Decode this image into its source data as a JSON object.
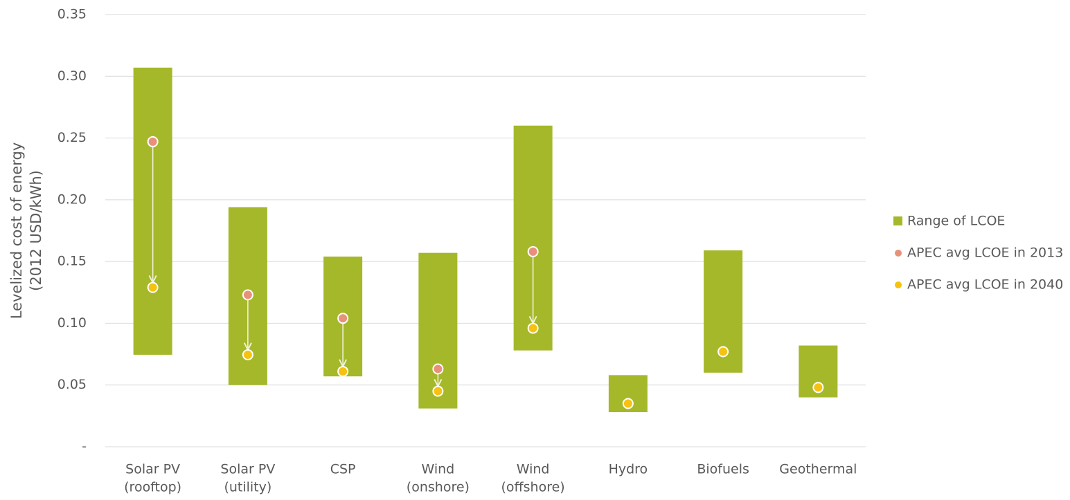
{
  "chart_data": {
    "type": "range-dot",
    "ylabel": [
      "Levelized cost of energy",
      "(2012 USD/kWh)"
    ],
    "categories": [
      [
        "Solar PV",
        "(rooftop)"
      ],
      [
        "Solar PV",
        "(utility)"
      ],
      [
        "CSP"
      ],
      [
        "Wind",
        "(onshore)"
      ],
      [
        "Wind",
        "(offshore)"
      ],
      [
        "Hydro"
      ],
      [
        "Biofuels"
      ],
      [
        "Geothermal"
      ]
    ],
    "ylim": [
      0,
      0.35
    ],
    "yticks": [
      {
        "value": 0,
        "label": "-"
      },
      0.05,
      {
        "value": 0.1,
        "label": "0.10"
      },
      0.15,
      {
        "value": 0.2,
        "label": "0.20"
      },
      0.25,
      {
        "value": 0.3,
        "label": "0.30"
      },
      0.35
    ],
    "grid": true,
    "legend": "right",
    "series": [
      {
        "name": "Range of LCOE",
        "color": "#a5b82a",
        "values": [
          [
            0.0745,
            0.307
          ],
          [
            0.05,
            0.194
          ],
          [
            0.057,
            0.154
          ],
          [
            0.031,
            0.157
          ],
          [
            0.078,
            0.26
          ],
          [
            0.028,
            0.058
          ],
          [
            0.06,
            0.159
          ],
          [
            0.04,
            0.082
          ]
        ]
      },
      {
        "name": "APEC avg LCOE in 2013",
        "color": "#e8917a",
        "values": [
          0.247,
          0.123,
          0.104,
          0.063,
          0.158,
          null,
          null,
          null
        ]
      },
      {
        "name": "APEC avg LCOE in 2040",
        "color": "#f5c211",
        "values": [
          0.129,
          0.0745,
          0.061,
          0.045,
          0.096,
          0.035,
          0.077,
          0.048
        ]
      }
    ]
  }
}
